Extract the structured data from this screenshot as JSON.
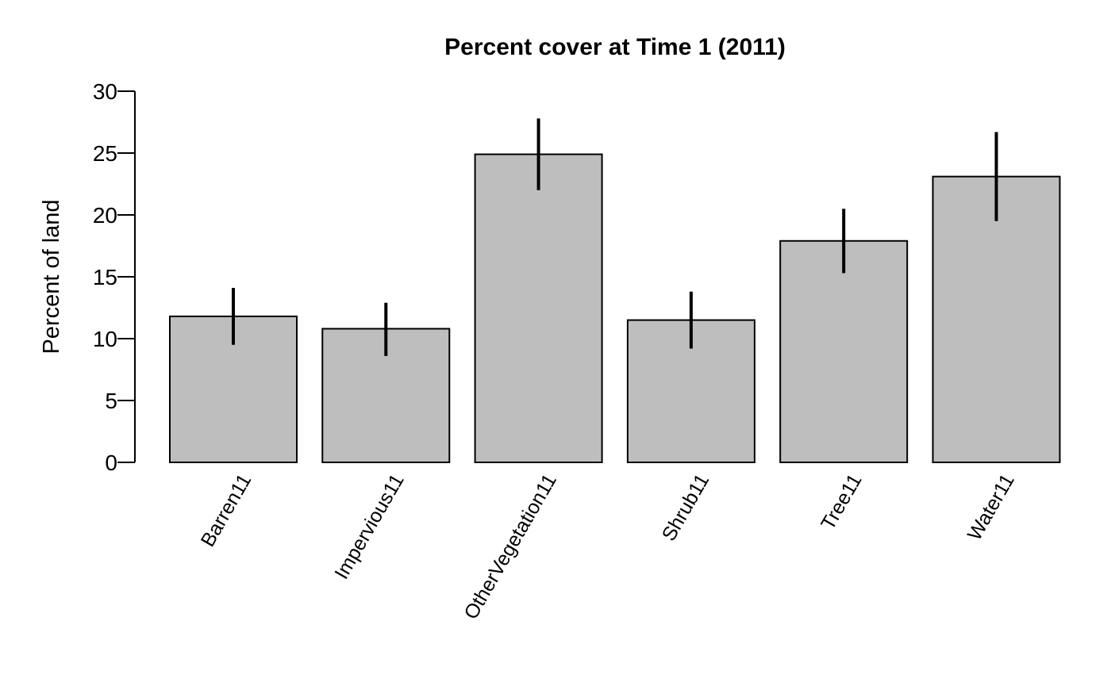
{
  "chart_data": {
    "type": "bar",
    "title": "Percent cover at Time 1 (2011)",
    "xlabel": "",
    "ylabel": "Percent of land",
    "categories": [
      "Barren11",
      "Impervious11",
      "OtherVegetation11",
      "Shrub11",
      "Tree11",
      "Water11"
    ],
    "values": [
      11.8,
      10.8,
      24.9,
      11.5,
      17.9,
      23.1
    ],
    "error_low": [
      9.5,
      8.6,
      22.0,
      9.2,
      15.3,
      19.5
    ],
    "error_high": [
      14.1,
      12.9,
      27.8,
      13.8,
      20.5,
      26.7
    ],
    "ylim": [
      0,
      30
    ],
    "yticks": [
      0,
      5,
      10,
      15,
      20,
      25,
      30
    ],
    "ytick_labels": [
      "0",
      "5",
      "10",
      "15",
      "20",
      "25",
      "30"
    ],
    "grid": false,
    "legend": "none",
    "bar_color": "#bebebe",
    "edge_color": "#000000"
  }
}
